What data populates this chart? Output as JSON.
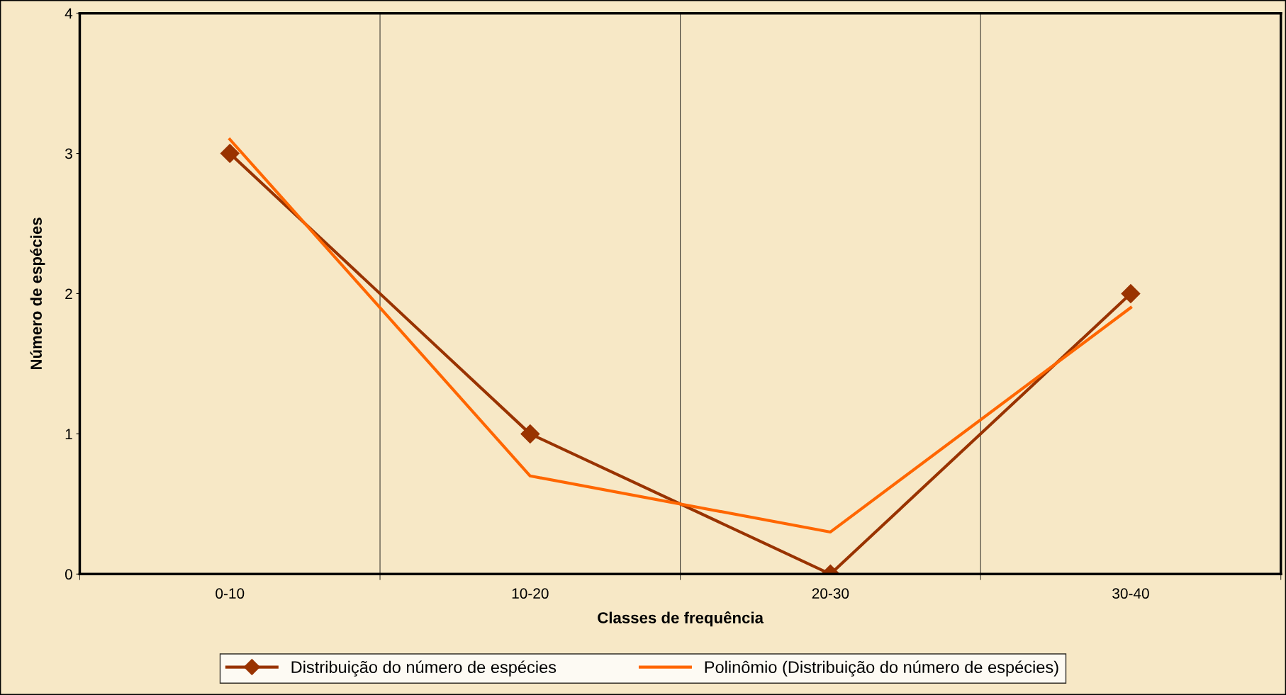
{
  "chart_data": {
    "type": "line",
    "xlabel": "Classes de frequência",
    "ylabel": "Número de espécies",
    "categories": [
      "0-10",
      "10-20",
      "20-30",
      "30-40"
    ],
    "series": [
      {
        "name": "Distribuição do número de espécies",
        "color": "#993300",
        "values": [
          3,
          1,
          0,
          2
        ],
        "marker": "diamond"
      },
      {
        "name": "Polinômio (Distribuição do número de espécies)",
        "color": "#ff6600",
        "values": [
          3.1,
          0.7,
          0.3,
          1.9
        ],
        "marker": "none"
      }
    ],
    "ylim": [
      0,
      4
    ],
    "yticks": [
      0,
      1,
      2,
      3,
      4
    ],
    "grid": "x",
    "legend": "bottom"
  }
}
